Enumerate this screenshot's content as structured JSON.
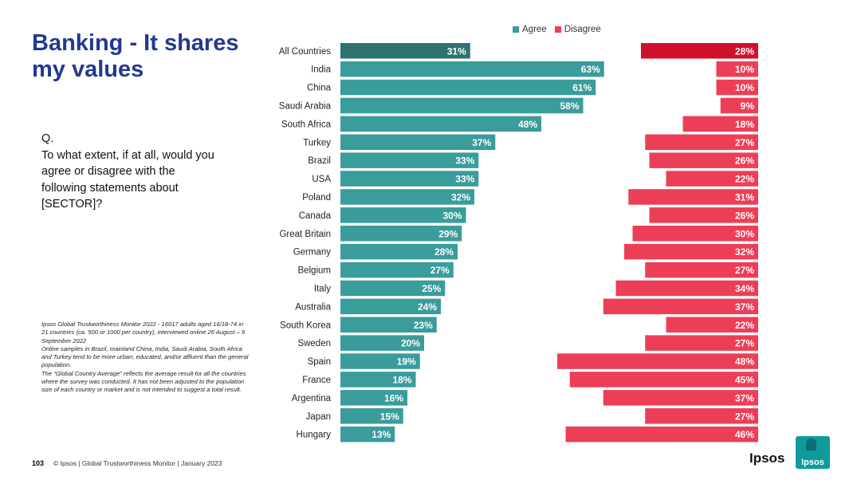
{
  "slide": {
    "title": "Banking - It shares my values",
    "question_q": "Q.",
    "question_text": "To what extent, if at all, would you agree or disagree with the following statements about [SECTOR]?",
    "notes": [
      "Ipsos Global Trustworthiness Monitor 2022 - 16017 adults aged 16/18-74 in 21 countries (ca. 500 or 1000 per country), interviewed online 26 August – 9 September 2022",
      "Online samples in Brazil, mainland China, India, Saudi Arabia, South Africa and Turkey tend to be more urban, educated, and/or affluent than the general population.",
      "The “Global Country Average” reflects the average result for all the countries where the survey was conducted. It has not been adjusted to the population size of each country or market and is not intended to suggest a total result."
    ],
    "page_number": "103",
    "footer_text": "© Ipsos | Global Trustworthiness Monitor | January 2023",
    "logo_text": "Ipsos",
    "logo_box_text": "Ipsos"
  },
  "colors": {
    "agree": "#3a9c9b",
    "agree_highlight": "#2e7272",
    "disagree": "#ec3f57",
    "disagree_highlight": "#d0102b",
    "title": "#23398f"
  },
  "chart_data": {
    "type": "bar",
    "orientation": "horizontal",
    "legend": [
      "Agree",
      "Disagree"
    ],
    "categories": [
      "All Countries",
      "India",
      "China",
      "Saudi Arabia",
      "South Africa",
      "Turkey",
      "Brazil",
      "USA",
      "Poland",
      "Canada",
      "Great Britain",
      "Germany",
      "Belgium",
      "Italy",
      "Australia",
      "South Korea",
      "Sweden",
      "Spain",
      "France",
      "Argentina",
      "Japan",
      "Hungary"
    ],
    "series": [
      {
        "name": "Agree",
        "values": [
          31,
          63,
          61,
          58,
          48,
          37,
          33,
          33,
          32,
          30,
          29,
          28,
          27,
          25,
          24,
          23,
          20,
          19,
          18,
          16,
          15,
          13
        ]
      },
      {
        "name": "Disagree",
        "values": [
          28,
          10,
          10,
          9,
          18,
          27,
          26,
          22,
          31,
          26,
          30,
          32,
          27,
          34,
          37,
          22,
          27,
          48,
          45,
          37,
          27,
          46
        ]
      }
    ],
    "value_suffix": "%",
    "highlight_category": "All Countries"
  }
}
